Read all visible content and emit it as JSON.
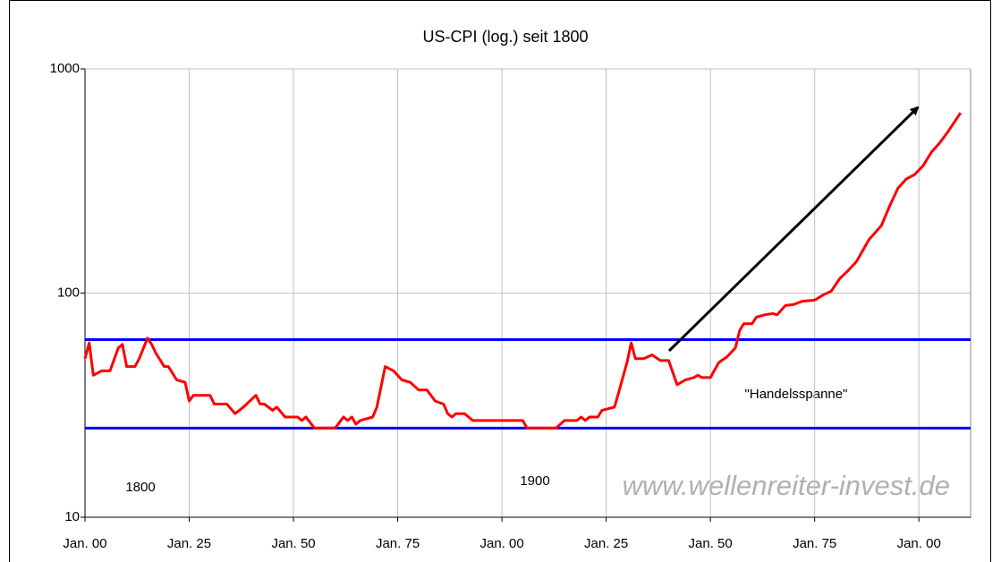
{
  "chart_data": {
    "type": "line",
    "title": "US-CPI (log.) seit 1800",
    "log_scale": true,
    "grid": true,
    "xlim": [
      1800,
      2012.4
    ],
    "ylim": [
      10,
      1000
    ],
    "yticks": [
      10,
      100,
      1000
    ],
    "xticks": [
      {
        "value": 1800,
        "label": "Jan. 00"
      },
      {
        "value": 1825,
        "label": "Jan. 25"
      },
      {
        "value": 1850,
        "label": "Jan. 50"
      },
      {
        "value": 1875,
        "label": "Jan. 75"
      },
      {
        "value": 1900,
        "label": "Jan. 00"
      },
      {
        "value": 1925,
        "label": "Jan. 25"
      },
      {
        "value": 1950,
        "label": "Jan. 50"
      },
      {
        "value": 1975,
        "label": "Jan. 75"
      },
      {
        "value": 2000,
        "label": "Jan. 00"
      }
    ],
    "series": [
      {
        "color": "#ff0000",
        "x": [
          1800,
          1801,
          1802,
          1804,
          1806,
          1808,
          1809,
          1810,
          1812,
          1813,
          1815,
          1816,
          1817,
          1819,
          1820,
          1822,
          1824,
          1825,
          1826,
          1830,
          1831,
          1834,
          1836,
          1838,
          1841,
          1842,
          1843,
          1845,
          1846,
          1848,
          1851,
          1852,
          1853,
          1855,
          1860,
          1862,
          1863,
          1864,
          1865,
          1866,
          1869,
          1870,
          1872,
          1874,
          1876,
          1878,
          1880,
          1882,
          1884,
          1886,
          1887,
          1888,
          1889,
          1891,
          1893,
          1905,
          1906,
          1913,
          1915,
          1918,
          1919,
          1920,
          1921,
          1923,
          1924,
          1927,
          1928,
          1930,
          1931,
          1932,
          1934,
          1936,
          1938,
          1940,
          1942,
          1944,
          1946,
          1947,
          1948,
          1950,
          1952,
          1954,
          1956,
          1957,
          1958,
          1960,
          1961,
          1963,
          1965,
          1966,
          1968,
          1970,
          1972,
          1975,
          1977,
          1979,
          1981,
          1983,
          1985,
          1988,
          1991,
          1993,
          1995,
          1997,
          1999,
          2001,
          2003,
          2005,
          2007,
          2008,
          2009,
          2010
        ],
        "values": [
          51,
          60,
          43,
          45,
          45,
          57,
          59,
          47,
          47,
          51,
          63,
          59,
          54,
          47,
          47,
          41,
          40,
          33,
          35,
          35,
          32,
          32,
          29,
          31,
          35,
          32,
          32,
          30,
          31,
          28,
          28,
          27,
          28,
          25,
          25,
          28,
          27,
          28,
          26,
          27,
          28,
          31,
          47,
          45,
          41,
          40,
          37,
          37,
          33,
          32,
          29,
          28,
          29,
          29,
          27,
          27,
          25,
          25,
          27,
          27,
          28,
          27,
          28,
          28,
          30,
          31,
          36,
          49,
          60,
          51,
          51,
          53,
          50,
          50,
          39,
          41,
          42,
          43,
          42,
          42,
          49,
          52,
          57,
          68,
          73,
          73,
          78,
          80,
          81,
          80,
          88,
          89,
          92,
          93,
          98,
          102,
          116,
          126,
          138,
          173,
          200,
          245,
          294,
          323,
          338,
          370,
          425,
          468,
          525,
          561,
          598,
          637
        ]
      }
    ],
    "hlines": [
      {
        "value": 62,
        "color": "#0000ff"
      },
      {
        "value": 25,
        "color": "#0000ff"
      }
    ],
    "annotations": [
      "\"Handelsspanne\"",
      "1800",
      "1900"
    ],
    "watermark": "www.wellenreiter-invest.de"
  }
}
